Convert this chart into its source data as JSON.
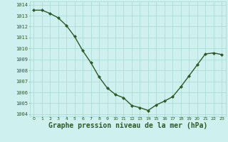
{
  "x": [
    0,
    1,
    2,
    3,
    4,
    5,
    6,
    7,
    8,
    9,
    10,
    11,
    12,
    13,
    14,
    15,
    16,
    17,
    18,
    19,
    20,
    21,
    22,
    23
  ],
  "y": [
    1013.5,
    1013.5,
    1013.2,
    1012.8,
    1012.1,
    1011.1,
    1009.8,
    1008.7,
    1007.4,
    1006.4,
    1005.8,
    1005.5,
    1004.8,
    1004.6,
    1004.35,
    1004.85,
    1005.2,
    1005.6,
    1006.5,
    1007.5,
    1008.5,
    1009.5,
    1009.6,
    1009.45
  ],
  "line_color": "#2d5a27",
  "marker": "D",
  "marker_size": 2,
  "line_width": 1.0,
  "bg_color": "#cef0ee",
  "grid_color": "#a8d8d0",
  "xlabel": "Graphe pression niveau de la mer (hPa)",
  "xlabel_fontsize": 7,
  "ytick_min": 1004,
  "ytick_max": 1014,
  "ytick_step": 1,
  "xtick_labels": [
    "0",
    "1",
    "2",
    "3",
    "4",
    "5",
    "6",
    "7",
    "8",
    "9",
    "10",
    "11",
    "12",
    "13",
    "14",
    "15",
    "16",
    "17",
    "18",
    "19",
    "20",
    "21",
    "22",
    "23"
  ]
}
